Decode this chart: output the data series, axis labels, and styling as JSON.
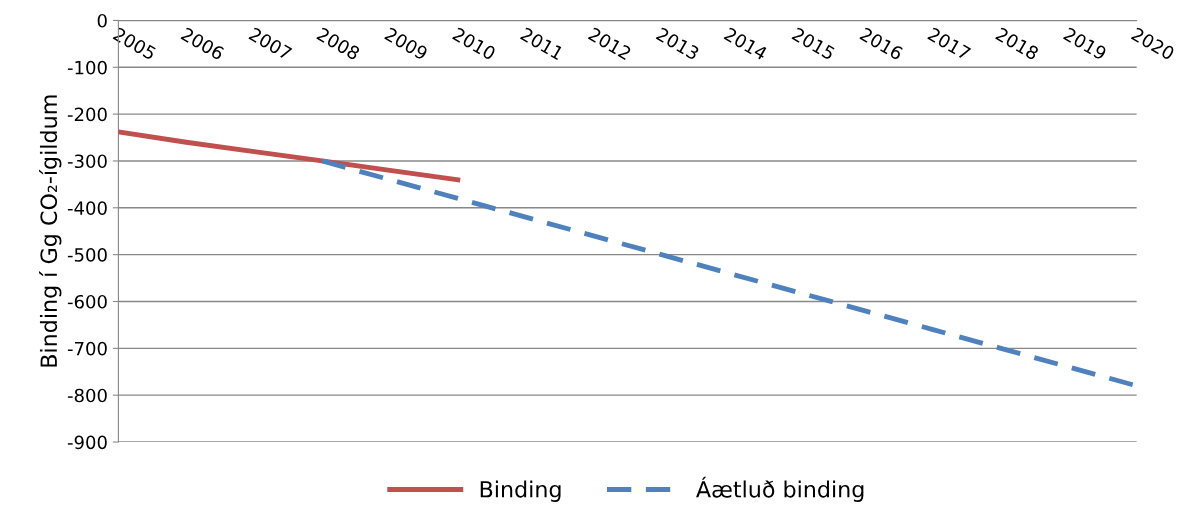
{
  "chart_data": {
    "type": "line",
    "ylabel": "Binding í Gg CO₂-ígildum",
    "categories": [
      "2005",
      "2006",
      "2007",
      "2008",
      "2009",
      "2010",
      "2011",
      "2012",
      "2013",
      "2014",
      "2015",
      "2016",
      "2017",
      "2018",
      "2019",
      "2020"
    ],
    "series": [
      {
        "name": "Binding",
        "color": "#c0504d",
        "line_style": "solid",
        "values": [
          -238,
          -260,
          -280,
          -300,
          -320,
          -340,
          null,
          null,
          null,
          null,
          null,
          null,
          null,
          null,
          null,
          null
        ]
      },
      {
        "name": "Áætluð binding",
        "color": "#4f81bd",
        "line_style": "dashed",
        "values": [
          null,
          null,
          null,
          -300,
          -340,
          -380,
          -420,
          -460,
          -500,
          -540,
          -580,
          -620,
          -660,
          -700,
          -740,
          -780
        ]
      }
    ],
    "ylim": [
      -900,
      0
    ],
    "yticks": [
      -900,
      -800,
      -700,
      -600,
      -500,
      -400,
      -300,
      -200,
      -100,
      0
    ],
    "grid": "y",
    "legend": "bottom",
    "marker": "none"
  }
}
